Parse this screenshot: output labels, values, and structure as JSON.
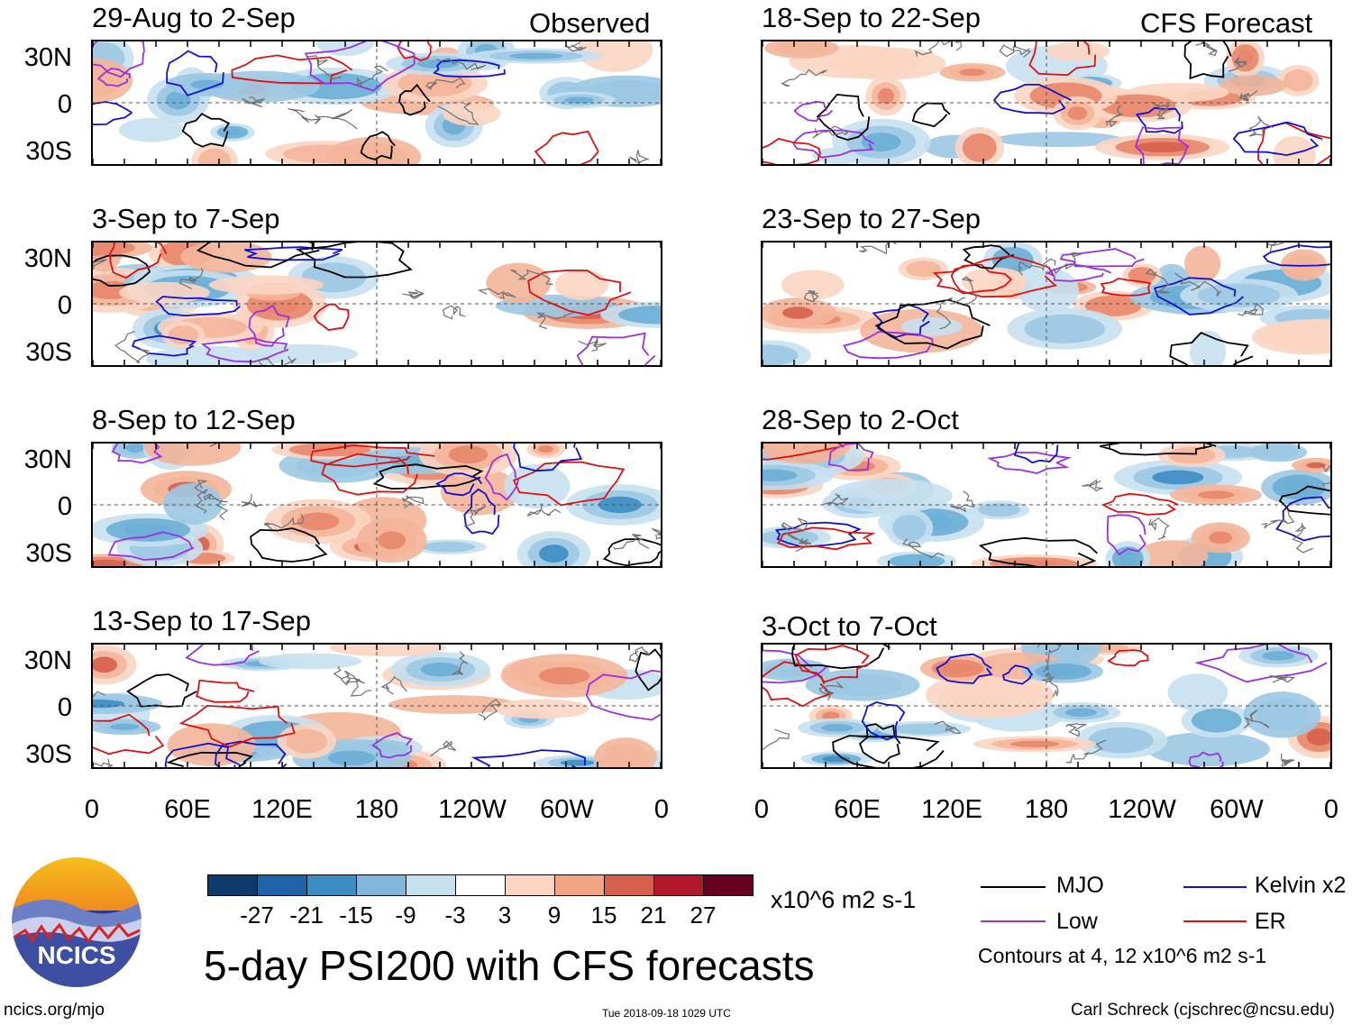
{
  "headers": {
    "observed": "Observed",
    "forecast": "CFS Forecast"
  },
  "panels_left": [
    {
      "title": "29-Aug to 2-Sep"
    },
    {
      "title": "3-Sep to 7-Sep"
    },
    {
      "title": "8-Sep to 12-Sep"
    },
    {
      "title": "13-Sep to 17-Sep"
    }
  ],
  "panels_right": [
    {
      "title": "18-Sep to 22-Sep"
    },
    {
      "title": "23-Sep to 27-Sep"
    },
    {
      "title": "28-Sep to 2-Oct"
    },
    {
      "title": "3-Oct to 7-Oct"
    }
  ],
  "lat_labels": [
    "30N",
    "0",
    "30S"
  ],
  "lon_labels": [
    "0",
    "60E",
    "120E",
    "180",
    "120W",
    "60W",
    "0"
  ],
  "colorbar": {
    "colors": [
      "#0b3a6b",
      "#1f63a8",
      "#3c8dc4",
      "#7fb6da",
      "#c7e0ef",
      "#ffffff",
      "#fbd5c2",
      "#f1a582",
      "#d6604d",
      "#b2182b",
      "#67001f"
    ],
    "labels": [
      "-27",
      "-21",
      "-15",
      "-9",
      "-3",
      "3",
      "9",
      "15",
      "21",
      "27"
    ],
    "units": "x10^6 m2 s-1"
  },
  "legend": {
    "items": [
      {
        "label": "MJO",
        "color": "#000000"
      },
      {
        "label": "Kelvin x2",
        "color": "#1010d0"
      },
      {
        "label": "Low",
        "color": "#9b30e0"
      },
      {
        "label": "ER",
        "color": "#e01010"
      }
    ],
    "note": "Contours at 4, 12 x10^6 m2 s-1"
  },
  "main_title": "5-day PSI200 with CFS forecasts",
  "logo_text": "NCICS",
  "footer": {
    "url": "ncics.org/mjo",
    "timestamp": "Tue 2018-09-18 1029 UTC",
    "author": "Carl Schreck (cjschrec@ncsu.edu)"
  }
}
